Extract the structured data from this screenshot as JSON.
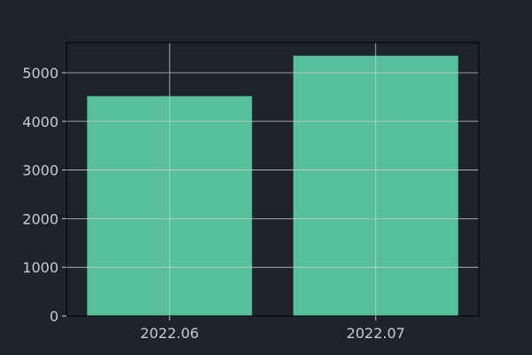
{
  "colors": {
    "background": "#1f232b",
    "bar": "#57c09a",
    "grid": "#c8c8c8",
    "axis": "#000000",
    "tick_label": "#c8ccd0"
  },
  "chart_data": {
    "type": "bar",
    "categories": [
      "2022.06",
      "2022.07"
    ],
    "values": [
      4520,
      5350
    ],
    "ylim": [
      0,
      5620
    ],
    "yticks": [
      0,
      1000,
      2000,
      3000,
      4000,
      5000
    ],
    "grid": true,
    "legend": "none"
  }
}
